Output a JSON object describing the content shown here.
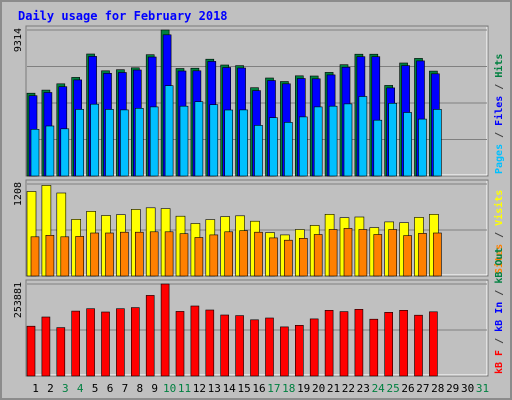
{
  "chart_data": {
    "type": "bar",
    "title": "Daily usage for February 2018",
    "categories": [
      "1",
      "2",
      "3",
      "4",
      "5",
      "6",
      "7",
      "8",
      "9",
      "10",
      "11",
      "12",
      "13",
      "14",
      "15",
      "16",
      "17",
      "18",
      "19",
      "20",
      "21",
      "22",
      "23",
      "24",
      "25",
      "26",
      "27",
      "28",
      "29",
      "30",
      "31"
    ],
    "weekend_days": [
      "3",
      "4",
      "10",
      "11",
      "17",
      "18",
      "24",
      "25",
      "31"
    ],
    "panels": [
      {
        "id": "requests",
        "max_label": "9314",
        "ymax": 9314,
        "right_label": [
          {
            "text": "Pages",
            "color": "#00c0ff"
          },
          {
            "text": " / ",
            "color": "#404040"
          },
          {
            "text": "Files",
            "color": "#0000ff"
          },
          {
            "text": " / ",
            "color": "#404040"
          },
          {
            "text": "Hits",
            "color": "#008040"
          }
        ],
        "series": [
          {
            "name": "Hits",
            "color": "#008040",
            "values": [
              5280,
              5480,
              5880,
              6290,
              7780,
              6710,
              6780,
              6900,
              7740,
              9314,
              6860,
              6880,
              7450,
              7080,
              7040,
              5630,
              6250,
              6030,
              6390,
              6380,
              6610,
              7100,
              7770,
              7770,
              5780,
              7210,
              7500,
              6690,
              null,
              null,
              null
            ]
          },
          {
            "name": "Files",
            "color": "#0000ff",
            "values": [
              5120,
              5330,
              5700,
              6130,
              7630,
              6550,
              6600,
              6760,
              7590,
              9010,
              6700,
              6710,
              7310,
              6920,
              6890,
              5450,
              6090,
              5880,
              6220,
              6200,
              6450,
              6940,
              7610,
              7610,
              5620,
              7040,
              7340,
              6520,
              null,
              null,
              null
            ]
          },
          {
            "name": "Pages",
            "color": "#00c0ff",
            "values": [
              2980,
              3190,
              3010,
              4250,
              4580,
              4250,
              4220,
              4320,
              4410,
              5760,
              4450,
              4740,
              4550,
              4210,
              4220,
              3230,
              3720,
              3420,
              3770,
              4410,
              4450,
              4600,
              5070,
              3560,
              4640,
              4050,
              3630,
              4250,
              null,
              null,
              null
            ]
          }
        ]
      },
      {
        "id": "sites",
        "max_label": "1208",
        "ymax": 1208,
        "right_label": [
          {
            "text": "Sites",
            "color": "#ff8000"
          },
          {
            "text": " / ",
            "color": "#404040"
          },
          {
            "text": "Visits",
            "color": "#ffff00"
          }
        ],
        "series": [
          {
            "name": "Visits",
            "color": "#ffff00",
            "values": [
              1110,
              1190,
              1090,
              745,
              850,
              795,
              805,
              875,
              895,
              885,
              785,
              690,
              740,
              780,
              790,
              720,
              570,
              540,
              610,
              665,
              810,
              765,
              775,
              635,
              710,
              700,
              770,
              810,
              null,
              null,
              null
            ]
          },
          {
            "name": "Sites",
            "color": "#ff8000",
            "values": [
              515,
              535,
              515,
              520,
              565,
              565,
              575,
              575,
              580,
              580,
              555,
              505,
              540,
              580,
              595,
              575,
              500,
              470,
              495,
              545,
              610,
              625,
              610,
              545,
              610,
              530,
              560,
              565,
              null,
              null,
              null
            ]
          }
        ]
      },
      {
        "id": "volume",
        "max_label": "253881",
        "ymax": 253881,
        "right_label": [
          {
            "text": "kB F",
            "color": "#ff0000"
          },
          {
            "text": " / ",
            "color": "#404040"
          },
          {
            "text": "kB In",
            "color": "#0000ff"
          },
          {
            "text": " / ",
            "color": "#404040"
          },
          {
            "text": "kB Out",
            "color": "#008040"
          }
        ],
        "series": [
          {
            "name": "kB F",
            "color": "#ff0000",
            "values": [
              137500,
              162800,
              133500,
              179000,
              185700,
              176700,
              185700,
              188700,
              222300,
              253881,
              178300,
              193100,
              182200,
              168200,
              166700,
              155200,
              160000,
              135500,
              140000,
              157700,
              181200,
              177700,
              184200,
              156700,
              175700,
              181200,
              167700,
              177200,
              null,
              null,
              null
            ]
          }
        ]
      }
    ]
  }
}
